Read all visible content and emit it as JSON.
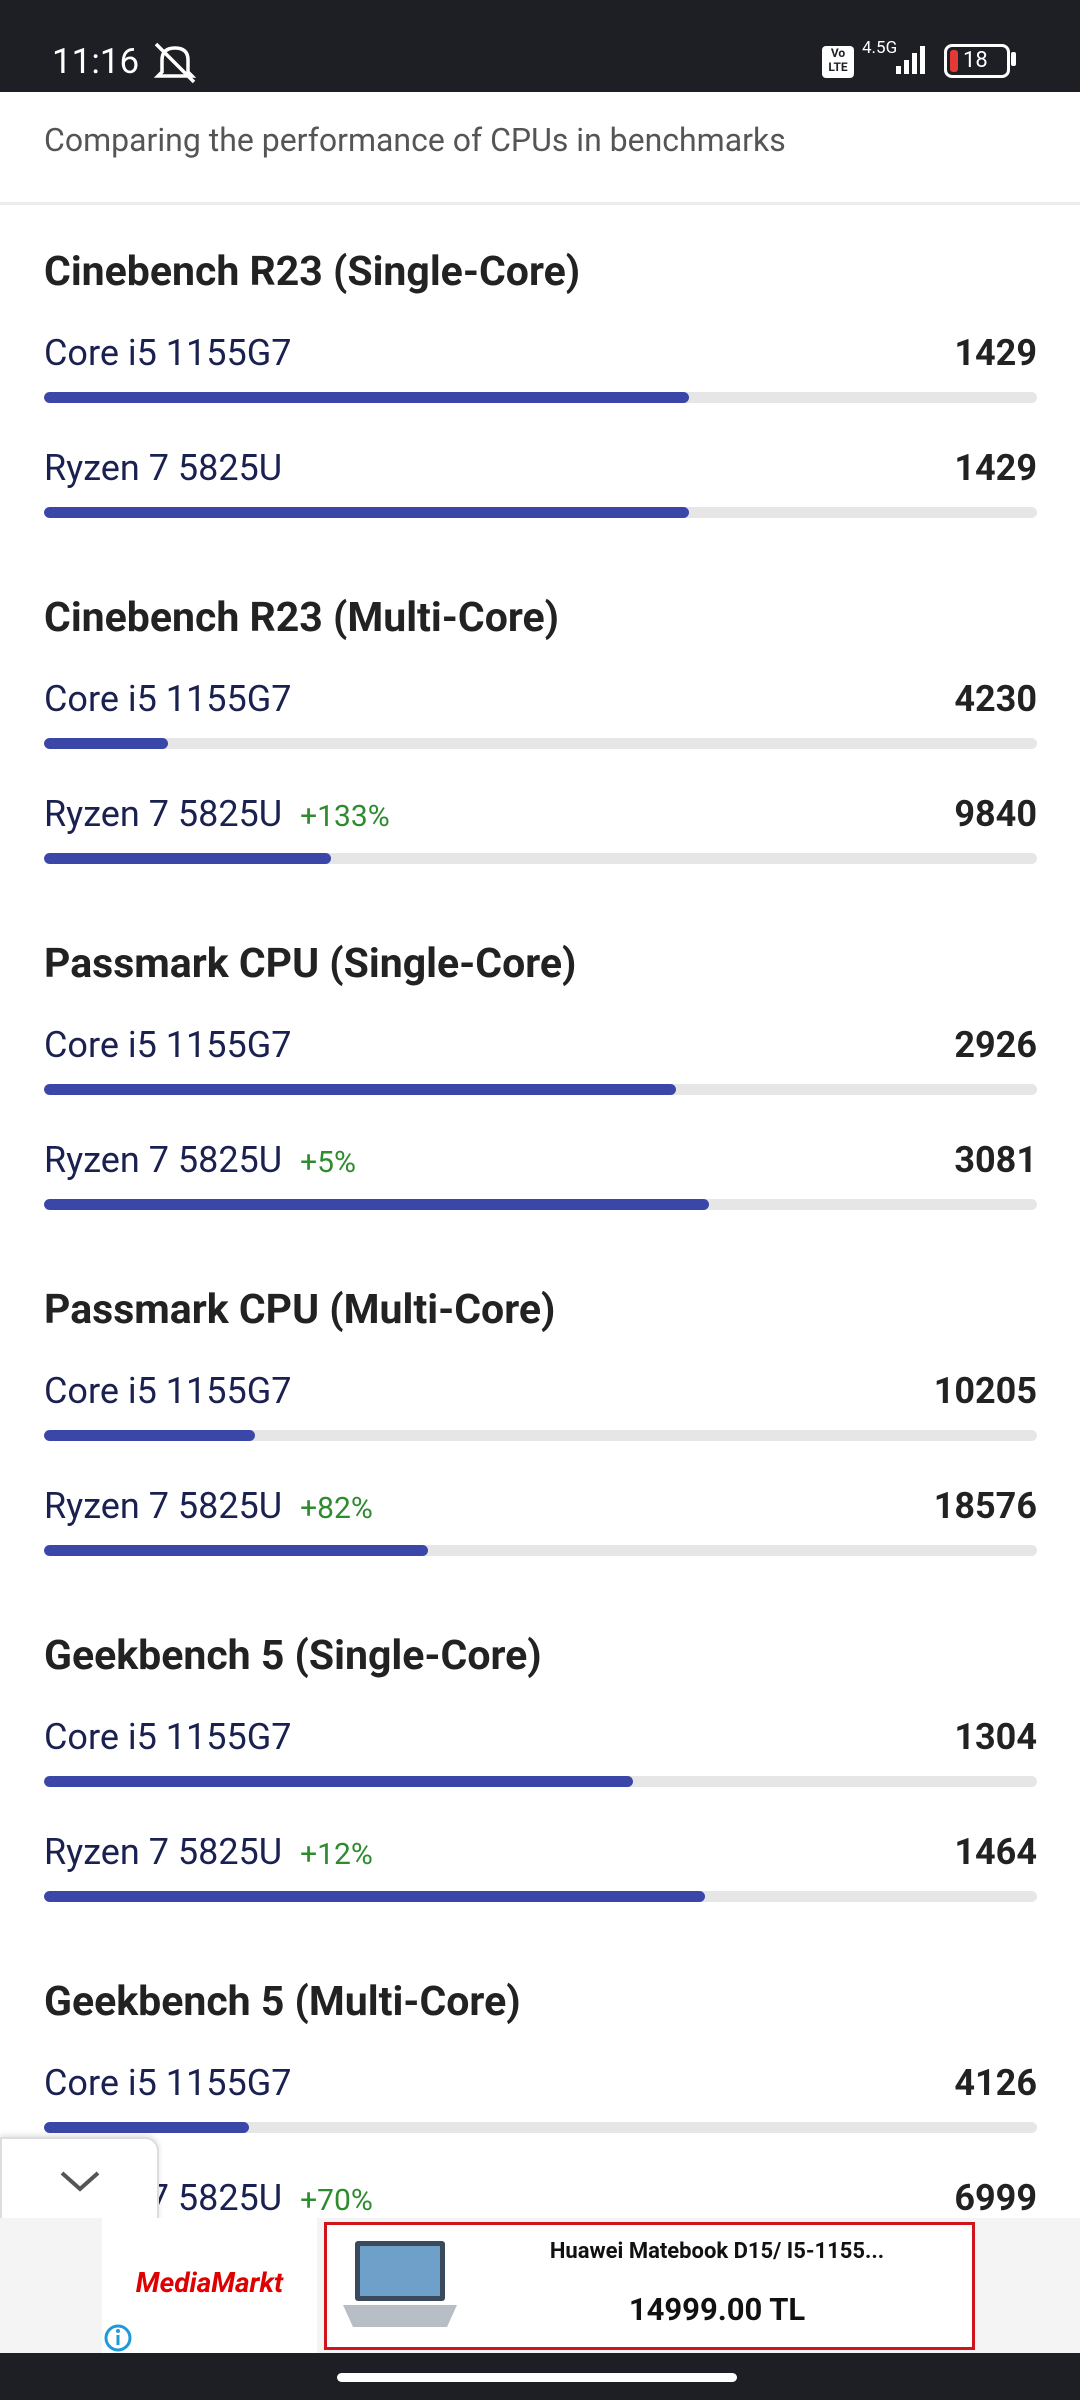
{
  "status_bar": {
    "time": "11:16",
    "volte": [
      "Vo",
      "LTE"
    ],
    "network": "4.5G",
    "battery": "18"
  },
  "header": {
    "subtitle": "Comparing the performance of CPUs in benchmarks"
  },
  "benchmarks": [
    {
      "title": "Cinebench R23 (Single-Core)",
      "xlim": [
        0,
        2200
      ],
      "rows": [
        {
          "name": "Core i5 1155G7",
          "score": 1429
        },
        {
          "name": "Ryzen 7 5825U",
          "score": 1429
        }
      ]
    },
    {
      "title": "Cinebench R23 (Multi-Core)",
      "xlim": [
        0,
        34000
      ],
      "rows": [
        {
          "name": "Core i5 1155G7",
          "score": 4230
        },
        {
          "name": "Ryzen 7 5825U",
          "diff": "+133%",
          "score": 9840
        }
      ]
    },
    {
      "title": "Passmark CPU (Single-Core)",
      "xlim": [
        0,
        4600
      ],
      "rows": [
        {
          "name": "Core i5 1155G7",
          "score": 2926
        },
        {
          "name": "Ryzen 7 5825U",
          "diff": "+5%",
          "score": 3081
        }
      ]
    },
    {
      "title": "Passmark CPU (Multi-Core)",
      "xlim": [
        0,
        48000
      ],
      "rows": [
        {
          "name": "Core i5 1155G7",
          "score": 10205
        },
        {
          "name": "Ryzen 7 5825U",
          "diff": "+82%",
          "score": 18576
        }
      ]
    },
    {
      "title": "Geekbench 5 (Single-Core)",
      "xlim": [
        0,
        2200
      ],
      "rows": [
        {
          "name": "Core i5 1155G7",
          "score": 1304
        },
        {
          "name": "Ryzen 7 5825U",
          "diff": "+12%",
          "score": 1464
        }
      ]
    },
    {
      "title": "Geekbench 5 (Multi-Core)",
      "xlim": [
        0,
        20000
      ],
      "rows": [
        {
          "name": "Core i5 1155G7",
          "score": 4126
        },
        {
          "name": "Ryzen 7 5825U",
          "diff": "+70%",
          "score": 6999
        }
      ]
    }
  ],
  "ad": {
    "brand": "MediaMarkt",
    "product": "Huawei Matebook D15/ I5-1155...",
    "price": "14999.00 TL"
  }
}
